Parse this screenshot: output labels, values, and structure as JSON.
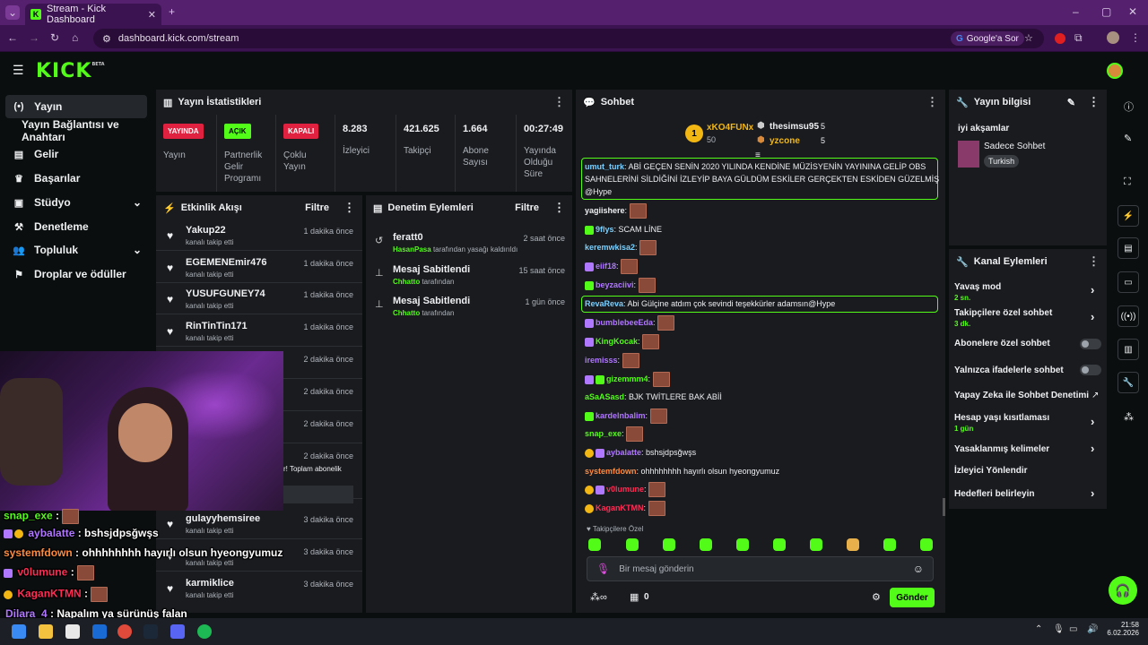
{
  "browser": {
    "tab_title": "Stream - Kick Dashboard",
    "url": "dashboard.kick.com/stream",
    "google_btn": "Google'a Sor"
  },
  "nav": {
    "items": [
      {
        "label": "Yayın",
        "icon": "broadcast-icon",
        "active": true
      },
      {
        "label": "Yayın Bağlantısı ve Anahtarı",
        "icon": "",
        "active": false
      },
      {
        "label": "Gelir",
        "icon": "revenue-icon",
        "active": false
      },
      {
        "label": "Başarılar",
        "icon": "trophy-icon",
        "active": false
      },
      {
        "label": "Stüdyo",
        "icon": "studio-icon",
        "active": false
      },
      {
        "label": "Denetleme",
        "icon": "moderation-icon",
        "active": false
      },
      {
        "label": "Topluluk",
        "icon": "community-icon",
        "active": false
      },
      {
        "label": "Droplar ve ödüller",
        "icon": "drops-icon",
        "active": false
      }
    ]
  },
  "stats": {
    "title": "Yayın İstatistikleri",
    "items": [
      {
        "badge": "YAYINDA",
        "label": "Yayın"
      },
      {
        "badge": "AÇIK",
        "label": "Partnerlik Gelir Programı"
      },
      {
        "badge": "KAPALI",
        "label": "Çoklu Yayın"
      },
      {
        "value": "8.283",
        "label": "İzleyici"
      },
      {
        "value": "421.625",
        "label": "Takipçi"
      },
      {
        "value": "1.664",
        "label": "Abone Sayısı"
      },
      {
        "value": "00:27:49",
        "label": "Yayında Olduğu Süre"
      }
    ]
  },
  "activity": {
    "title": "Etkinlik Akışı",
    "filter": "Filtre",
    "rows": [
      {
        "name": "Yakup22",
        "sub": "kanalı takip etti",
        "time": "1 dakika önce"
      },
      {
        "name": "EGEMENEmir476",
        "sub": "kanalı takip etti",
        "time": "1 dakika önce"
      },
      {
        "name": "YUSUFGUNEY74",
        "sub": "kanalı takip etti",
        "time": "1 dakika önce"
      },
      {
        "name": "RinTinTin171",
        "sub": "kanalı takip etti",
        "time": "1 dakika önce"
      },
      {
        "name": "",
        "sub": "",
        "time": "2 dakika önce"
      },
      {
        "name": "",
        "sub": "",
        "time": "2 dakika önce"
      },
      {
        "name": "",
        "sub": "",
        "time": "2 dakika önce"
      },
      {
        "name": "",
        "sub": "r! Toplam abonelik",
        "time": "2 dakika önce"
      },
      {
        "name": "gulayyhemsiree",
        "sub": "kanalı takip etti",
        "time": "3 dakika önce"
      },
      {
        "name": "",
        "sub": "kanalı takip etti",
        "time": "3 dakika önce"
      },
      {
        "name": "karmiklice",
        "sub": "kanalı takip etti",
        "time": "3 dakika önce"
      }
    ]
  },
  "moderation": {
    "title": "Denetim Eylemleri",
    "filter": "Filtre",
    "rows": [
      {
        "icon": "unban-icon",
        "name": "feratt0",
        "actor": "HasanPasa",
        "sub": "tarafından yasağı kaldırıldı",
        "time": "2 saat önce"
      },
      {
        "icon": "pin-icon",
        "name": "Mesaj Sabitlendi",
        "actor": "Chhatto",
        "sub": "tarafından",
        "time": "15 saat önce"
      },
      {
        "icon": "pin-icon",
        "name": "Mesaj Sabitlendi",
        "actor": "Chhatto",
        "sub": "tarafından",
        "time": "1 gün önce"
      }
    ]
  },
  "chat": {
    "title": "Sohbet",
    "leaders": [
      {
        "name": "xKO4FUNx",
        "count": "50"
      },
      {
        "name": "thesimsu95",
        "count": "5"
      },
      {
        "name": "yzcone",
        "count": "5"
      }
    ],
    "pinned": {
      "user": "umut_turk",
      "text": "ABİ GEÇEN SENİN 2020 YILINDA KENDİNE MÜZİSYENİN YAYININA GELİP OBS",
      "line2": "SAHNELERİNİ SİLDİĞİNİ İZLEYİP BAYA GÜLDÜM ESKİLER GERÇEKTEN ESKİDEN GÜZELMİŞ",
      "line3": "@Hype"
    },
    "messages": [
      {
        "user": "yagiishere",
        "color": "#eef0f2",
        "text": "",
        "emote": true
      },
      {
        "user": "9flys",
        "color": "#7ad0ff",
        "text": "SCAM LİNE",
        "emote": false
      },
      {
        "user": "keremwkisa2",
        "color": "#7ad0ff",
        "text": "",
        "emote": true
      },
      {
        "user": "eiif18",
        "color": "#b077ff",
        "text": "",
        "emote": true
      },
      {
        "user": "beyzaciivi",
        "color": "#b077ff",
        "text": "",
        "emote": true
      },
      {
        "user": "RevaReva",
        "color": "#7ad0ff",
        "text": "Abi Gülçine atdım çok sevindi teşekkürler adamsın@Hype",
        "emote": false
      },
      {
        "user": "bumblebeeEda",
        "color": "#b077ff",
        "text": "",
        "emote": true
      },
      {
        "user": "KingKocak",
        "color": "#53fc18",
        "text": "",
        "emote": true
      },
      {
        "user": "iremisss",
        "color": "#b077ff",
        "text": "",
        "emote": true
      },
      {
        "user": "gizemmm4",
        "color": "#53fc18",
        "text": "",
        "emote": true
      },
      {
        "user": "aSaASasd",
        "color": "#53fc18",
        "text": "BJK TWİTLERE BAK ABİİ",
        "emote": false
      },
      {
        "user": "kardelnbalim",
        "color": "#b077ff",
        "text": "",
        "emote": true
      },
      {
        "user": "snap_exe",
        "color": "#53fc18",
        "text": "",
        "emote": true
      },
      {
        "user": "aybalatte",
        "color": "#b077ff",
        "text": "bshsjdpsğwşs",
        "emote": false
      },
      {
        "user": "systemfdown",
        "color": "#ff8a3d",
        "text": "ohhhhhhhh hayırlı olsun hyeongyumuz",
        "emote": false
      },
      {
        "user": "v0lumune",
        "color": "#ff2d55",
        "text": "",
        "emote": true
      },
      {
        "user": "KaganKTMN",
        "color": "#ff2d55",
        "text": "",
        "emote": true
      }
    ],
    "followers_only": "Takipçilere Özel",
    "input_placeholder": "Bir mesaj gönderin",
    "points": "0",
    "send": "Gönder"
  },
  "stream_info": {
    "title": "Yayın bilgisi",
    "stream_title": "iyi akşamlar",
    "category": "Sadece Sohbet",
    "tag": "Turkish"
  },
  "channel_actions": {
    "title": "Kanal Eylemleri",
    "items": [
      {
        "label": "Yavaş mod",
        "sub": "2 sn.",
        "type": "chevron"
      },
      {
        "label": "Takipçilere özel sohbet",
        "sub": "3 dk.",
        "type": "chevron"
      },
      {
        "label": "Abonelere özel sohbet",
        "sub": "",
        "type": "toggle"
      },
      {
        "label": "Yalnızca ifadelerle sohbet",
        "sub": "",
        "type": "toggle"
      },
      {
        "label": "Yapay Zeka ile Sohbet Denetimi",
        "sub": "",
        "type": "external"
      },
      {
        "label": "Hesap yaşı kısıtlaması",
        "sub": "1 gün",
        "type": "chevron"
      },
      {
        "label": "Yasaklanmış kelimeler",
        "sub": "",
        "type": "chevron"
      },
      {
        "label": "İzleyici Yönlendir",
        "sub": "",
        "type": "none"
      },
      {
        "label": "Hedefleri belirleyin",
        "sub": "",
        "type": "chevron"
      }
    ]
  },
  "overlay": {
    "lines": [
      {
        "user": "snap_exe",
        "text": ""
      },
      {
        "user": "aybalatte",
        "text": "bshsjdpsğwşs"
      },
      {
        "user": "systemfdown",
        "text": "ohhhhhhhh hayırlı olsun hyeongyumuz"
      },
      {
        "user": "v0lumune",
        "text": ""
      },
      {
        "user": "KaganKTMN",
        "text": ""
      },
      {
        "user": "Dilara_4",
        "text": "Napalım ya sürünüş falan"
      }
    ]
  },
  "taskbar": {
    "time": "21:58",
    "date": "6.02.2026"
  }
}
